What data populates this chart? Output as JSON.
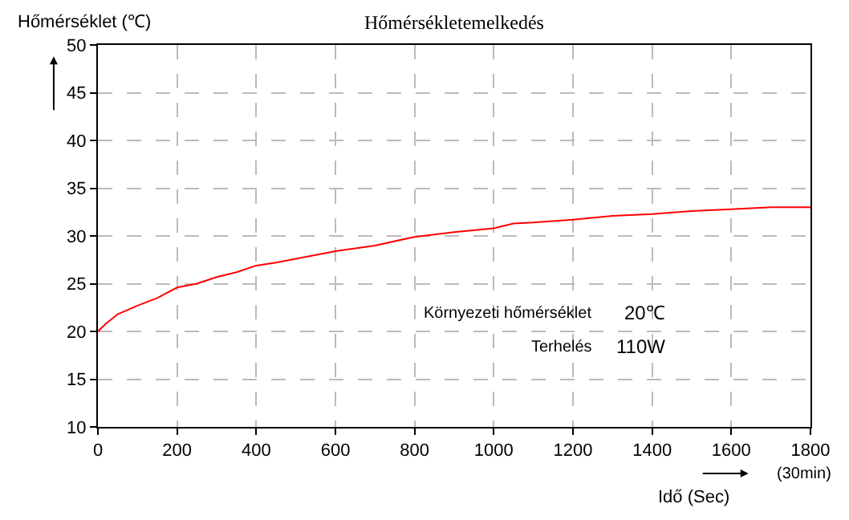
{
  "chart_data": {
    "type": "line",
    "title": "Hőmérsékletemelkedés",
    "xlabel": "Idő (Sec)",
    "ylabel": "Hőmérséklet (℃)",
    "x": [
      0,
      20,
      50,
      100,
      150,
      200,
      250,
      300,
      350,
      400,
      450,
      500,
      600,
      700,
      800,
      900,
      1000,
      1050,
      1100,
      1200,
      1300,
      1400,
      1500,
      1600,
      1700,
      1800
    ],
    "series": [
      {
        "color": "#ff0000",
        "values": [
          20,
          20.8,
          21.8,
          22.7,
          23.5,
          24.6,
          25,
          25.7,
          26.2,
          26.9,
          27.2,
          27.6,
          28.4,
          29.0,
          29.9,
          30.4,
          30.8,
          31.3,
          31.4,
          31.7,
          32.1,
          32.3,
          32.6,
          32.8,
          33.0,
          33.0
        ]
      }
    ],
    "xlim": [
      0,
      1800
    ],
    "xticks": [
      0,
      200,
      400,
      600,
      800,
      1000,
      1200,
      1400,
      1600,
      1800
    ],
    "ylim": [
      10,
      50
    ],
    "yticks": [
      10,
      15,
      20,
      25,
      30,
      35,
      40,
      45,
      50
    ],
    "grid": true,
    "marker": "none",
    "line_style": "solid",
    "annotations": [
      "Környezeti hőmérséklet",
      "20℃",
      "Terhelés",
      "110W",
      "(30min)"
    ]
  }
}
